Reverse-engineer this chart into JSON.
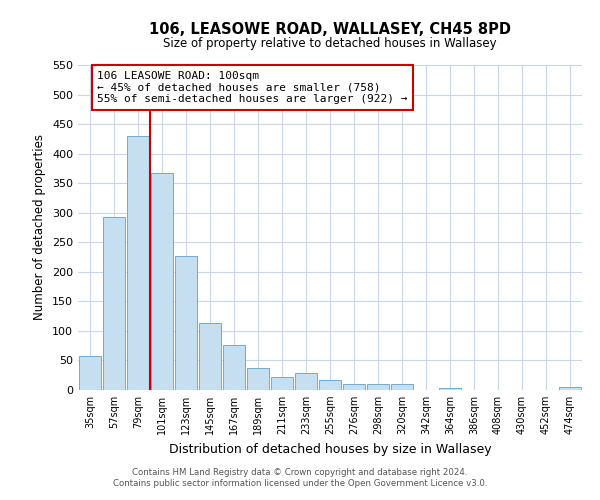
{
  "title": "106, LEASOWE ROAD, WALLASEY, CH45 8PD",
  "subtitle": "Size of property relative to detached houses in Wallasey",
  "xlabel": "Distribution of detached houses by size in Wallasey",
  "ylabel": "Number of detached properties",
  "bar_labels": [
    "35sqm",
    "57sqm",
    "79sqm",
    "101sqm",
    "123sqm",
    "145sqm",
    "167sqm",
    "189sqm",
    "211sqm",
    "233sqm",
    "255sqm",
    "276sqm",
    "298sqm",
    "320sqm",
    "342sqm",
    "364sqm",
    "386sqm",
    "408sqm",
    "430sqm",
    "452sqm",
    "474sqm"
  ],
  "bar_heights": [
    57,
    293,
    430,
    368,
    226,
    113,
    76,
    38,
    22,
    29,
    17,
    10,
    11,
    10,
    0,
    4,
    0,
    0,
    0,
    0,
    5
  ],
  "bar_color": "#c5dff0",
  "bar_edge_color": "#6aaed6",
  "property_line_bar_index": 3,
  "annotation_title": "106 LEASOWE ROAD: 100sqm",
  "annotation_line1": "← 45% of detached houses are smaller (758)",
  "annotation_line2": "55% of semi-detached houses are larger (922) →",
  "ylim": [
    0,
    550
  ],
  "yticks": [
    0,
    50,
    100,
    150,
    200,
    250,
    300,
    350,
    400,
    450,
    500,
    550
  ],
  "footer_line1": "Contains HM Land Registry data © Crown copyright and database right 2024.",
  "footer_line2": "Contains public sector information licensed under the Open Government Licence v3.0.",
  "property_line_color": "#cc0000",
  "annotation_box_color": "#ffffff",
  "annotation_box_edge": "#cc0000",
  "background_color": "#ffffff",
  "grid_color": "#c8d8ea"
}
